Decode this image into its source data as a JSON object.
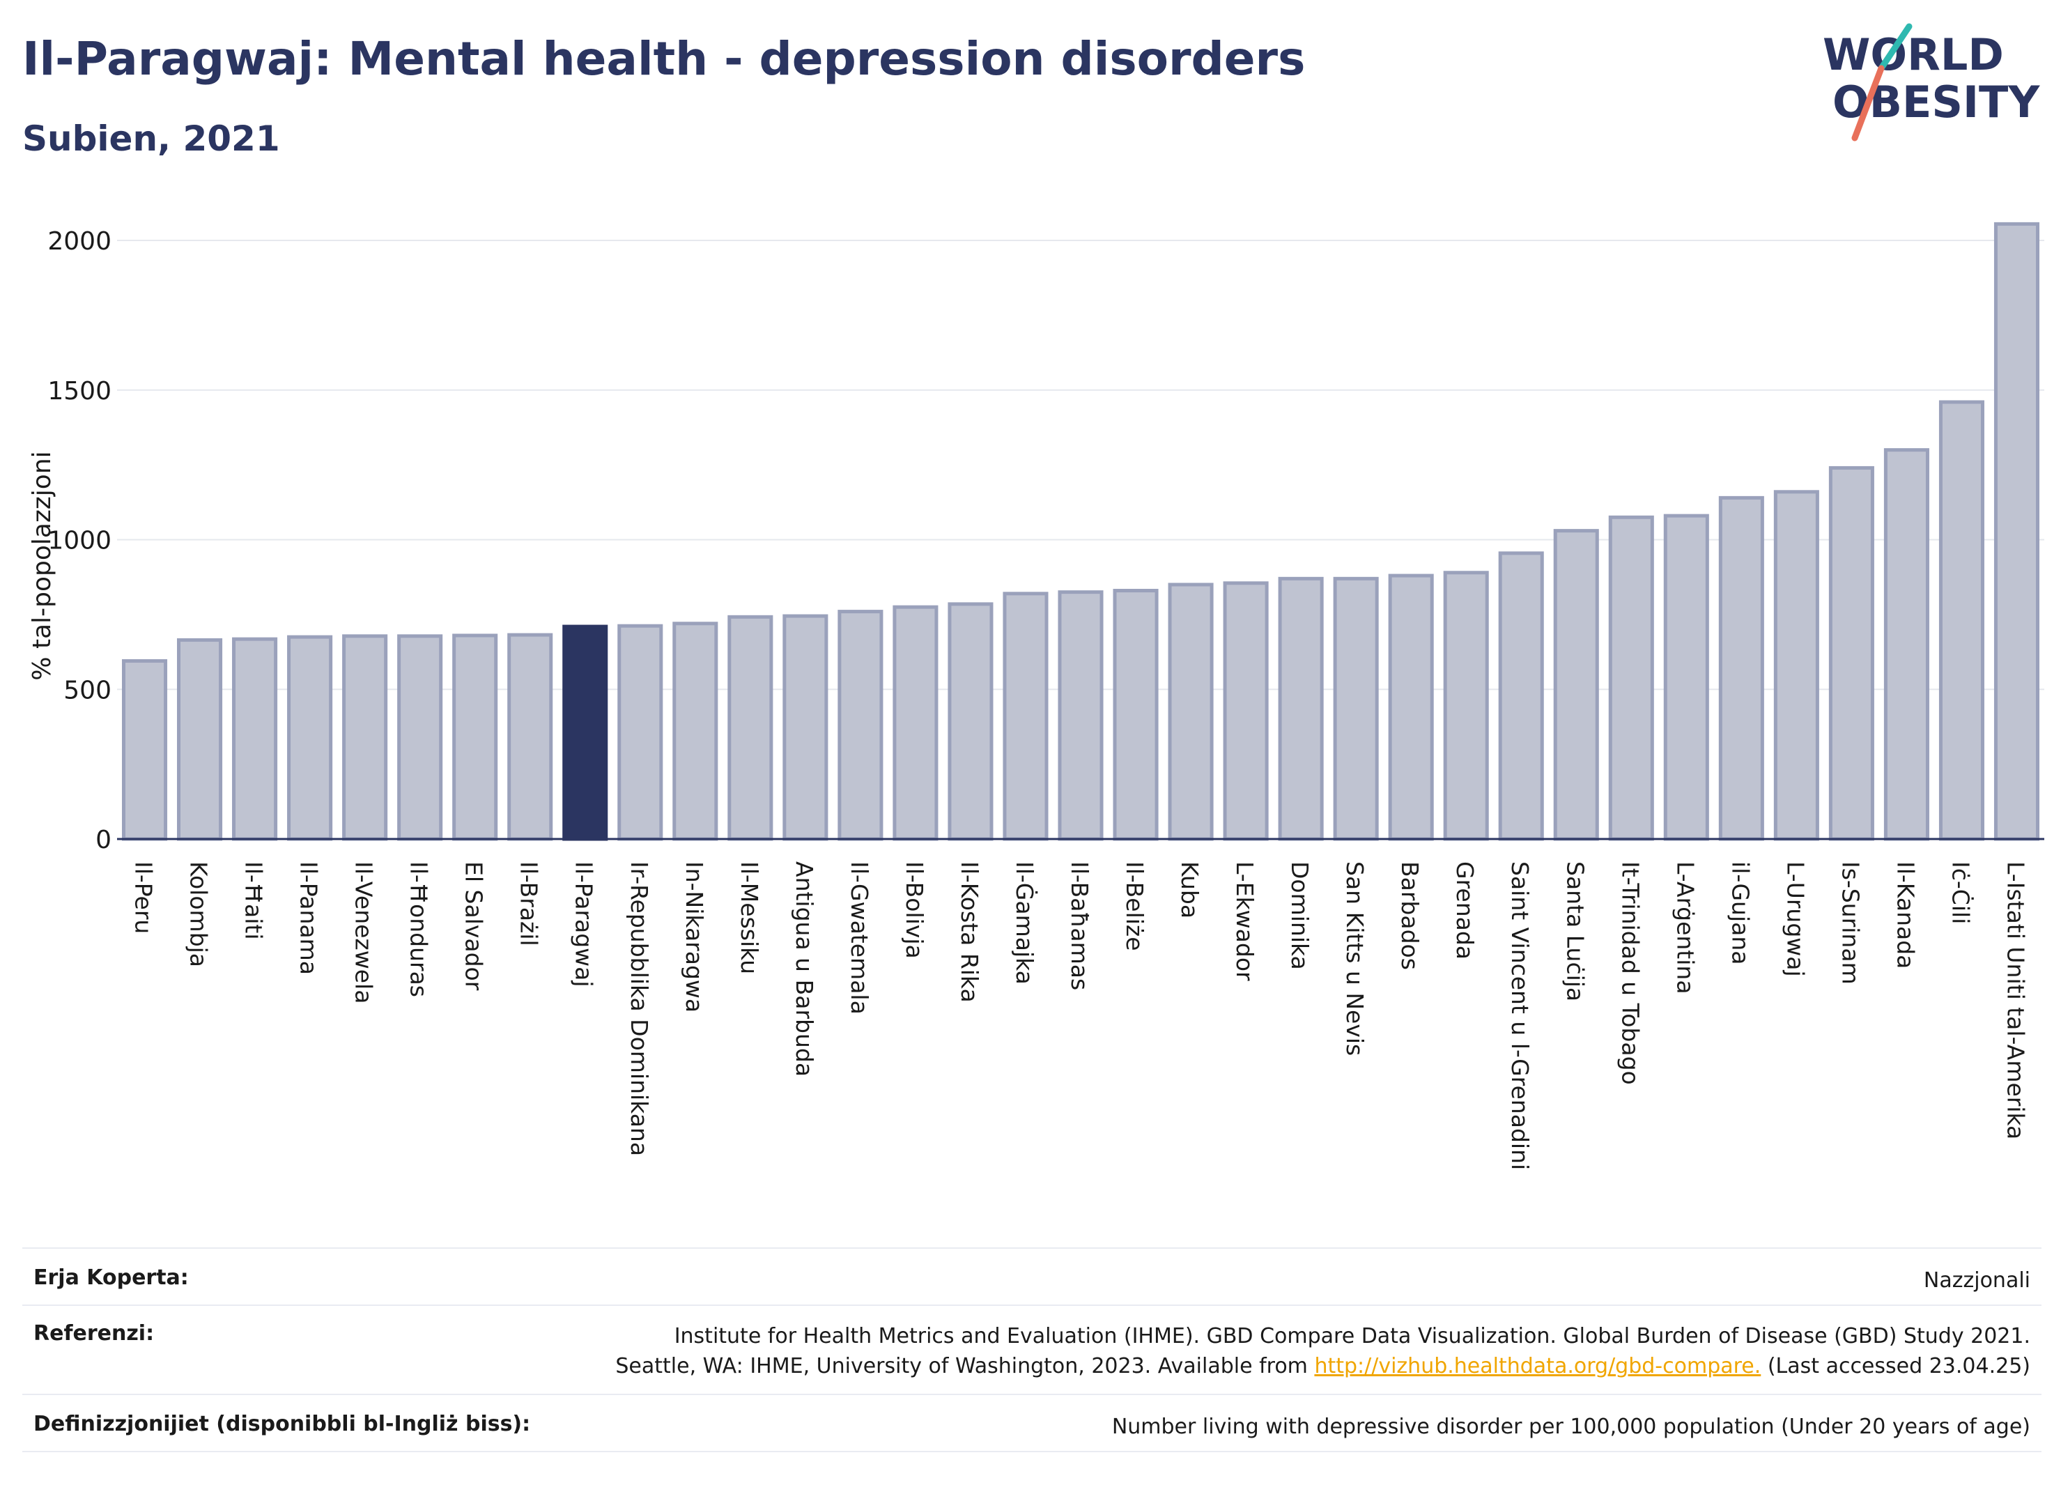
{
  "header": {
    "title": "Il-Paragwaj: Mental health - depression disorders",
    "subtitle": "Subien, 2021"
  },
  "logo": {
    "line1": "WORLD",
    "line2": "OBESITY"
  },
  "colors": {
    "highlight": "#2b3561",
    "bar_fill": "#bfc3d1",
    "bar_stroke": "#9aa1bb",
    "text": "#2b3561"
  },
  "chart_data": {
    "type": "bar",
    "ylabel": "% tal-popolazzjoni",
    "ylim": [
      0,
      2100
    ],
    "yticks": [
      0,
      500,
      1000,
      1500,
      2000
    ],
    "grid": true,
    "highlight": "Il-Paragwaj",
    "categories": [
      "Il-Peru",
      "Kolombja",
      "Il-Ħaiti",
      "Il-Panama",
      "Il-Venezwela",
      "Il-Ħonduras",
      "El Salvador",
      "Il-Brażil",
      "Il-Paragwaj",
      "Ir-Repubblika Dominikana",
      "In-Nikaragwa",
      "Il-Messiku",
      "Antigua u Barbuda",
      "Il-Gwatemala",
      "Il-Bolivja",
      "Il-Kosta Rika",
      "Il-Ġamajka",
      "Il-Baħamas",
      "Il-Beliże",
      "Kuba",
      "L-Ekwador",
      "Dominika",
      "San Kitts u Nevis",
      "Barbados",
      "Grenada",
      "Saint Vincent u l-Grenadini",
      "Santa Luċija",
      "It-Trinidad u Tobago",
      "L-Arġentina",
      "il-Gujana",
      "L-Urugwaj",
      "Is-Surinam",
      "Il-Kanada",
      "Iċ-Ċili",
      "L-Istati Uniti tal-Amerika"
    ],
    "values": [
      595,
      665,
      668,
      675,
      678,
      678,
      680,
      682,
      710,
      712,
      720,
      742,
      745,
      760,
      775,
      785,
      820,
      825,
      830,
      850,
      855,
      870,
      870,
      880,
      890,
      955,
      1030,
      1075,
      1080,
      1140,
      1160,
      1240,
      1300,
      1460,
      2055
    ]
  },
  "meta": {
    "coverage_label": "Erja Koperta:",
    "coverage_value": "Nazzjonali",
    "references_label": "Referenzi:",
    "references_line1": "Institute for Health Metrics and Evaluation (IHME). GBD Compare Data Visualization. Global Burden of Disease (GBD) Study 2021.",
    "references_line2_pre": "Seattle, WA: IHME, University of Washington, 2023. Available from ",
    "references_link": "http://vizhub.healthdata.org/gbd-compare.",
    "references_line2_post": " (Last accessed 23.04.25)",
    "definitions_label": "Definizzjonijiet (disponibbli bl-Ingliż biss):",
    "definitions_value": "Number living with depressive disorder per 100,000 population (Under 20 years of age)"
  }
}
